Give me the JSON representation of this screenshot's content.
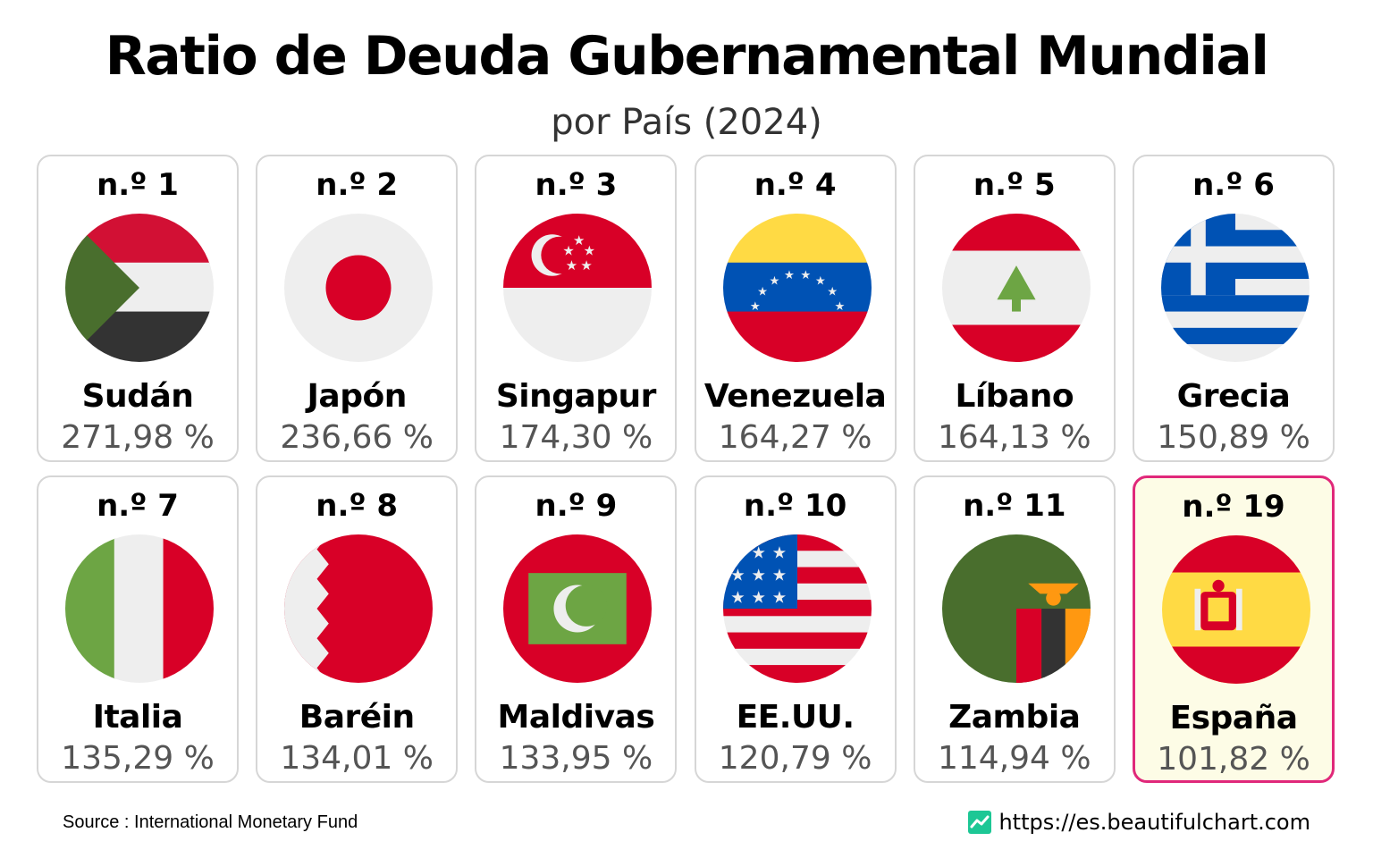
{
  "chart_data": {
    "type": "table",
    "title": "Ratio de Deuda Gubernamental Mundial",
    "subtitle": "por País (2024)",
    "entries": [
      {
        "rank": "n.º 1",
        "country": "Sudán",
        "value": "271,98 %",
        "ratio": 271.98,
        "flag": "sudan-flag"
      },
      {
        "rank": "n.º 2",
        "country": "Japón",
        "value": "236,66 %",
        "ratio": 236.66,
        "flag": "japan-flag"
      },
      {
        "rank": "n.º 3",
        "country": "Singapur",
        "value": "174,30 %",
        "ratio": 174.3,
        "flag": "singapore-flag"
      },
      {
        "rank": "n.º 4",
        "country": "Venezuela",
        "value": "164,27 %",
        "ratio": 164.27,
        "flag": "venezuela-flag"
      },
      {
        "rank": "n.º 5",
        "country": "Líbano",
        "value": "164,13 %",
        "ratio": 164.13,
        "flag": "lebanon-flag"
      },
      {
        "rank": "n.º 6",
        "country": "Grecia",
        "value": "150,89 %",
        "ratio": 150.89,
        "flag": "greece-flag"
      },
      {
        "rank": "n.º 7",
        "country": "Italia",
        "value": "135,29 %",
        "ratio": 135.29,
        "flag": "italy-flag"
      },
      {
        "rank": "n.º 8",
        "country": "Baréin",
        "value": "134,01 %",
        "ratio": 134.01,
        "flag": "bahrain-flag"
      },
      {
        "rank": "n.º 9",
        "country": "Maldivas",
        "value": "133,95 %",
        "ratio": 133.95,
        "flag": "maldives-flag"
      },
      {
        "rank": "n.º 10",
        "country": "EE.UU.",
        "value": "120,79 %",
        "ratio": 120.79,
        "flag": "usa-flag"
      },
      {
        "rank": "n.º 11",
        "country": "Zambia",
        "value": "114,94 %",
        "ratio": 114.94,
        "flag": "zambia-flag"
      },
      {
        "rank": "n.º 19",
        "country": "España",
        "value": "101,82 %",
        "ratio": 101.82,
        "flag": "spain-flag",
        "highlighted": true
      }
    ]
  },
  "footer": {
    "source": "Source : International Monetary Fund",
    "site": "https://es.beautifulchart.com"
  },
  "colors": {
    "highlight_border": "#e0287a",
    "highlight_background": "#fdfce6",
    "card_border": "#d6d6d6",
    "value_text": "#555555",
    "site_icon": "#1dc795"
  }
}
